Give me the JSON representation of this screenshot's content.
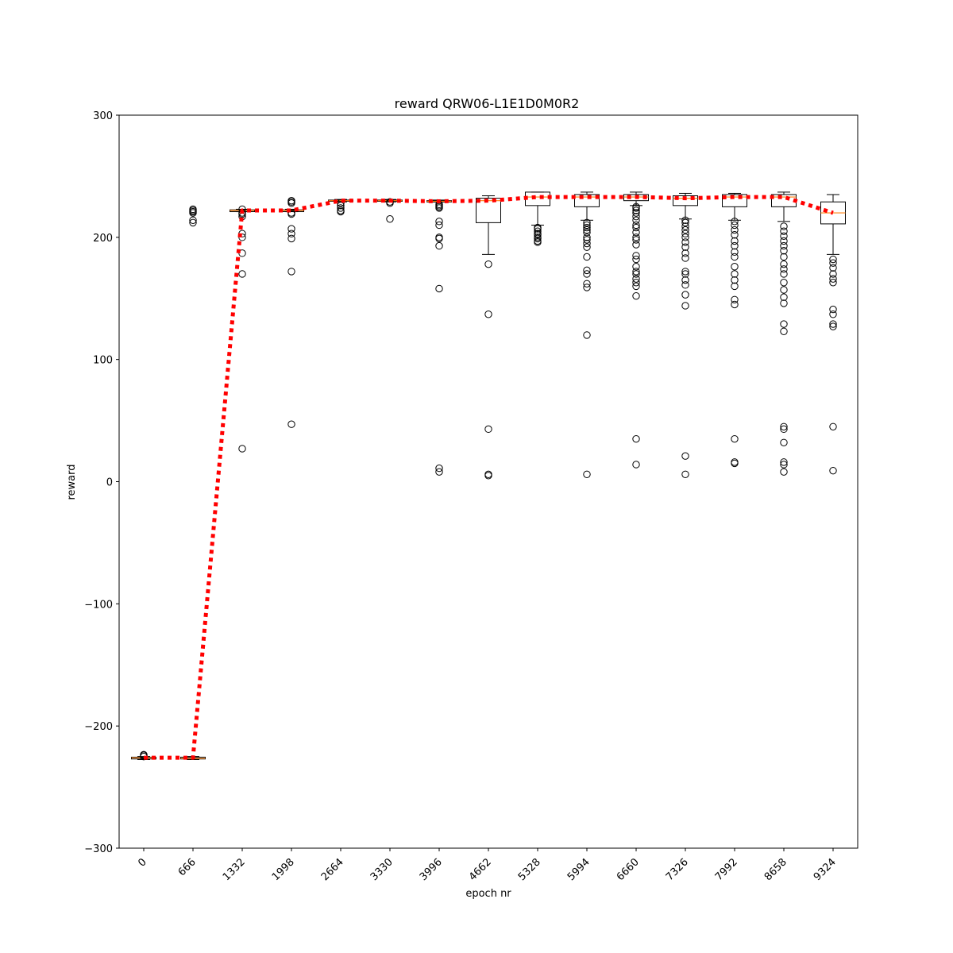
{
  "chart_data": {
    "type": "box",
    "title": "reward QRW06-L1E1D0M0R2",
    "xlabel": "epoch nr",
    "ylabel": "reward",
    "ylim": [
      -300,
      300
    ],
    "yticks": [
      -300,
      -200,
      -100,
      0,
      100,
      200,
      300
    ],
    "yticklabels": [
      "−300",
      "−200",
      "−100",
      "0",
      "100",
      "200",
      "300"
    ],
    "categories": [
      "0",
      "666",
      "1332",
      "1998",
      "2664",
      "3330",
      "3996",
      "4662",
      "5328",
      "5994",
      "6660",
      "7326",
      "7992",
      "8658",
      "9324"
    ],
    "boxes": [
      {
        "q1": -227,
        "median": -226,
        "q3": -225.5,
        "whisker_low": -227.5,
        "whisker_high": -225,
        "mean": -226,
        "outliers": [
          -224,
          -223.5,
          -225
        ]
      },
      {
        "q1": -227,
        "median": -226.5,
        "q3": -225.5,
        "whisker_low": -227.5,
        "whisker_high": -225,
        "mean": -226,
        "outliers": [
          212,
          214,
          220,
          221,
          222,
          223
        ]
      },
      {
        "q1": 221,
        "median": 222,
        "q3": 222.5,
        "whisker_low": 221,
        "whisker_high": 223,
        "mean": 222,
        "outliers": [
          27,
          170,
          187,
          200,
          203,
          217,
          219,
          220,
          223
        ]
      },
      {
        "q1": 221,
        "median": 222,
        "q3": 222.5,
        "whisker_low": 221,
        "whisker_high": 223,
        "mean": 222,
        "outliers": [
          47,
          172,
          199,
          203,
          207,
          219,
          220,
          228,
          229,
          230
        ]
      },
      {
        "q1": 229.5,
        "median": 230,
        "q3": 230.5,
        "whisker_low": 229,
        "whisker_high": 231,
        "mean": 230,
        "outliers": [
          221,
          222,
          224,
          226,
          228
        ]
      },
      {
        "q1": 229.5,
        "median": 230,
        "q3": 230.5,
        "whisker_low": 229,
        "whisker_high": 231,
        "mean": 230,
        "outliers": [
          215,
          228,
          229
        ]
      },
      {
        "q1": 229,
        "median": 229.5,
        "q3": 230,
        "whisker_low": 229,
        "whisker_high": 230.5,
        "mean": 229.5,
        "outliers": [
          8,
          11,
          158,
          193,
          199,
          200,
          210,
          213,
          224,
          225,
          226,
          227
        ]
      },
      {
        "q1": 212,
        "median": 230,
        "q3": 232,
        "whisker_low": 186,
        "whisker_high": 234,
        "mean": 230,
        "outliers": [
          5,
          6,
          43,
          137,
          178
        ]
      },
      {
        "q1": 226,
        "median": 233,
        "q3": 237,
        "whisker_low": 210,
        "whisker_high": 237,
        "mean": 233,
        "outliers": [
          196,
          197,
          199,
          200,
          202,
          203,
          205,
          207,
          208
        ]
      },
      {
        "q1": 225,
        "median": 233,
        "q3": 235,
        "whisker_low": 214,
        "whisker_high": 237,
        "mean": 233,
        "outliers": [
          6,
          120,
          159,
          162,
          170,
          173,
          184,
          192,
          195,
          198,
          200,
          204,
          206,
          208,
          210,
          212
        ]
      },
      {
        "q1": 230,
        "median": 233,
        "q3": 235,
        "whisker_low": 226,
        "whisker_high": 237,
        "mean": 233,
        "outliers": [
          14,
          35,
          152,
          160,
          163,
          166,
          170,
          172,
          176,
          182,
          185,
          194,
          198,
          200,
          204,
          208,
          210,
          214,
          217,
          220,
          222,
          224,
          225
        ]
      },
      {
        "q1": 226,
        "median": 232,
        "q3": 234,
        "whisker_low": 215,
        "whisker_high": 236,
        "mean": 232,
        "outliers": [
          6,
          21,
          144,
          153,
          161,
          165,
          170,
          172,
          183,
          187,
          192,
          196,
          200,
          203,
          206,
          209,
          212,
          214
        ]
      },
      {
        "q1": 225,
        "median": 233,
        "q3": 235,
        "whisker_low": 214,
        "whisker_high": 236,
        "mean": 233,
        "outliers": [
          15,
          16,
          35,
          145,
          149,
          160,
          165,
          170,
          176,
          184,
          188,
          193,
          197,
          202,
          206,
          210,
          213
        ]
      },
      {
        "q1": 225,
        "median": 233,
        "q3": 235,
        "whisker_low": 213,
        "whisker_high": 237,
        "mean": 233,
        "outliers": [
          8,
          14,
          16,
          32,
          43,
          45,
          123,
          129,
          146,
          151,
          157,
          163,
          170,
          174,
          178,
          184,
          189,
          193,
          197,
          201,
          205,
          209
        ]
      },
      {
        "q1": 211,
        "median": 220,
        "q3": 229,
        "whisker_low": 186,
        "whisker_high": 235,
        "mean": 220,
        "outliers": [
          9,
          45,
          127,
          129,
          137,
          141,
          163,
          166,
          170,
          175,
          179,
          182
        ]
      }
    ],
    "mean_line": {
      "style": "dotted",
      "color": "#ff0000",
      "values": [
        -226,
        -226,
        222,
        222,
        230,
        230,
        229.5,
        230,
        233,
        233,
        233,
        232,
        233,
        233,
        220
      ]
    },
    "colors": {
      "box": "#000000",
      "median": "#ff7f0e",
      "mean_line": "#ff0000",
      "outlier": "#000000"
    }
  }
}
